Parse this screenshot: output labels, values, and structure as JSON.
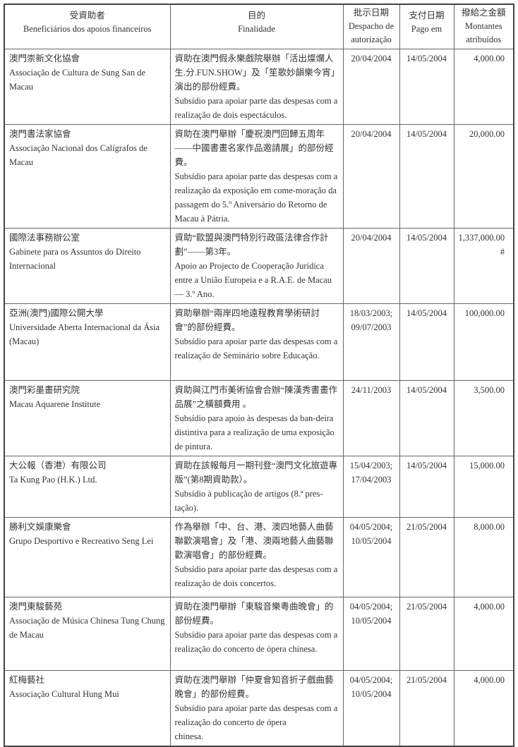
{
  "headers": [
    {
      "zh": "受資助者",
      "pt": "Beneficiários dos apoios financeiros"
    },
    {
      "zh": "目的",
      "pt": "Finalidade"
    },
    {
      "zh": "批示日期",
      "pt": "Despacho de\nautorização"
    },
    {
      "zh": "支付日期",
      "pt": "Pago em"
    },
    {
      "zh": "撥給之金額",
      "pt": "Montantes\natribuídos"
    }
  ],
  "rows": [
    {
      "beneficiary": "澳門崇新文化協會\nAssociação de Cultura de Sung San de Macau",
      "purpose": "資助在澳門假永樂戲院舉辦「活出燦爛人生.分.FUN.SHOW」及「笙歌妙韻樂今宵」演出的部份經費。\nSubsídio para apoiar parte das despesas com a realização de dois espectáculos.",
      "despacho": "20/04/2004",
      "pago": "14/05/2004",
      "montante": "4,000.00"
    },
    {
      "beneficiary": "澳門書法家協會\nAssociação Nacional dos Calígrafos de Macau",
      "purpose": "資助在澳門舉辦「慶祝澳門回歸五周年——中國書畫名家作品邀請展」的部份經費。\nSubsídio para apoiar parte das despesas com a realização da exposição em come-moração da passagem do 5.º Aniversário do Retorno de Macau à Pátria.",
      "despacho": "20/04/2004",
      "pago": "14/05/2004",
      "montante": "20,000.00"
    },
    {
      "beneficiary": "國際法事務辦公室\nGabinete para os Assuntos do Direito Internacional",
      "purpose": "資助“歐盟與澳門特別行政區法律合作計劃”——第3年。\nApoio ao Projecto de Cooperação Jurídica entre a União Europeia e a R.A.E. de Macau  — 3.º Ano.",
      "despacho": "20/04/2004",
      "pago": "14/05/2004",
      "montante": "1,337,000.00 #"
    },
    {
      "beneficiary": "亞洲(澳門)國際公開大學\nUniversidade Aberta Internacional da Ásia (Macau)",
      "purpose": "資助舉辦“兩岸四地遠程教育學術研討會”的部份經費。\n Subsídio para apoiar parte das despesas com a realização de Seminário sobre Educação.",
      "despacho": "18/03/2003;\n09/07/2003",
      "pago": "14/05/2004",
      "montante": "100,000.00"
    },
    {
      "beneficiary": "澳門彩墨畫研究院\nMacau Aquarene Institute",
      "purpose": "資助與江門市美術協會合辦“陳漢秀書畫作品展”之橫額費用 。\nSubsídio para apoio às despesas da ban-deira distintiva para a realização de uma exposição de pintura.",
      "despacho": "24/11/2003",
      "pago": "14/05/2004",
      "montante": "3,500.00"
    },
    {
      "beneficiary": "大公報（香港）有限公司\nTa Kung Pao (H.K.) Ltd.",
      "purpose": "資助在該報每月一期刊登“澳門文化旅遊專版”(第8期資助款）。\nSubsídio à publicação de artigos (8.ª pres-tação).",
      "despacho": "15/04/2003;\n17/04/2003",
      "pago": "14/05/2004",
      "montante": "15,000.00"
    },
    {
      "beneficiary": "勝利文娛康樂會\nGrupo Desportivo e Recreativo Seng Lei",
      "purpose": "作為舉辦「中、台、港、澳四地藝人曲藝聯歡演唱會」及「港、澳兩地藝人曲藝聯歡演唱會」的部份經費。\nSubsídio para apoiar parte das despesas com a realização de dois concertos.",
      "despacho": "04/05/2004;\n10/05/2004",
      "pago": "21/05/2004",
      "montante": "8,000.00"
    },
    {
      "beneficiary": "澳門東駿藝苑\nAssociação de Música Chinesa Tung Chung de Macau",
      "purpose": "資助在澳門舉辦「東駿音樂粵曲晚會」的部份經費。\nSubsídio para apoiar parte das despesas com a realização do concerto de ópera chinesa.",
      "despacho": "04/05/2004;\n10/05/2004",
      "pago": "21/05/2004",
      "montante": "4,000.00"
    },
    {
      "beneficiary": "紅梅藝社\nAssociação Cultural Hung Mui",
      "purpose": "資助在澳門舉辦「仲夏會知音折子戲曲藝晚會」的部份經費。\nSubsídio para apoiar parte das despesas com a realização do concerto de ópera\n chinesa.",
      "despacho": "04/05/2004;\n10/05/2004",
      "pago": "21/05/2004",
      "montante": "4,000.00"
    }
  ]
}
